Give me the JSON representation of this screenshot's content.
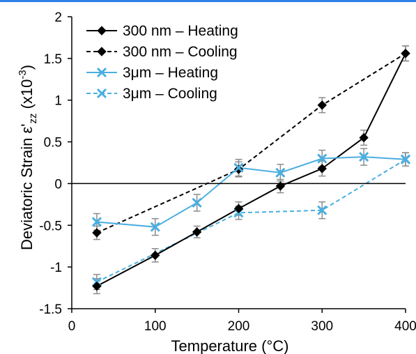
{
  "chart_data": {
    "type": "line",
    "xlabel": "Temperature (°C)",
    "ylabel_main": "Deviatoric Strain ε'",
    "ylabel_sub": "zz",
    "ylabel_unit_pre": " (x10",
    "ylabel_unit_sup": "-3",
    "ylabel_unit_post": ")",
    "xlim": [
      0,
      400
    ],
    "ylim": [
      -1.5,
      2
    ],
    "x_ticks": [
      0,
      100,
      200,
      300,
      400
    ],
    "x_tick_labels": [
      "0",
      "100",
      "200",
      "300",
      "400"
    ],
    "y_ticks": [
      -1.5,
      -1,
      -0.5,
      0,
      0.5,
      1,
      1.5,
      2
    ],
    "y_tick_labels": [
      "-1.5",
      "-1",
      "-0.5",
      "0",
      "0.5",
      "1",
      "1.5",
      "2"
    ],
    "grid": false,
    "legend_position": "top-left",
    "series": [
      {
        "name": "300 nm – Heating",
        "color": "#000000",
        "dash": "solid",
        "marker": "diamond",
        "x": [
          30,
          100,
          150,
          200,
          250,
          300,
          350,
          400
        ],
        "y": [
          -1.23,
          -0.86,
          -0.58,
          -0.3,
          -0.03,
          0.18,
          0.55,
          1.56
        ],
        "err": [
          0.09,
          0.08,
          0.07,
          0.08,
          0.08,
          0.09,
          0.09,
          0.09
        ]
      },
      {
        "name": "300 nm – Cooling",
        "color": "#000000",
        "dash": "dashed",
        "marker": "diamond",
        "x": [
          30,
          200,
          300,
          400
        ],
        "y": [
          -0.59,
          0.17,
          0.94,
          1.56
        ],
        "err": [
          0.08,
          0.09,
          0.09,
          0.09
        ]
      },
      {
        "name": "3μm – Heating",
        "color": "#4aaee0",
        "dash": "solid",
        "marker": "x",
        "x": [
          30,
          100,
          150,
          200,
          250,
          300,
          350,
          400
        ],
        "y": [
          -0.46,
          -0.52,
          -0.23,
          0.19,
          0.13,
          0.3,
          0.32,
          0.29
        ],
        "err": [
          0.1,
          0.1,
          0.1,
          0.1,
          0.1,
          0.1,
          0.1,
          0.08
        ]
      },
      {
        "name": "3μm – Cooling",
        "color": "#4aaee0",
        "dash": "dashed",
        "marker": "x",
        "x": [
          30,
          200,
          300,
          400
        ],
        "y": [
          -1.18,
          -0.35,
          -0.32,
          0.29
        ],
        "err": [
          0.09,
          0.08,
          0.1,
          0.08
        ]
      }
    ]
  }
}
